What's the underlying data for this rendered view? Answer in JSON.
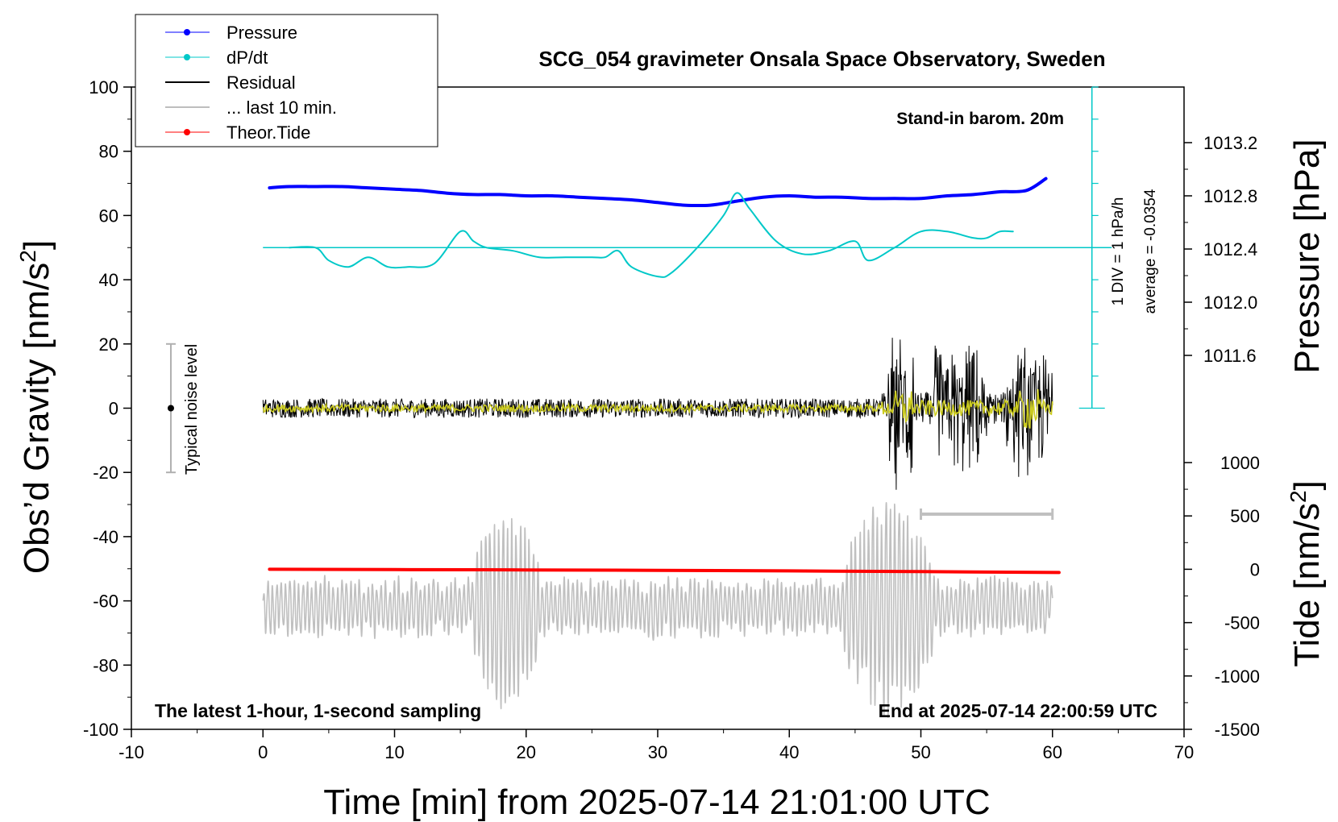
{
  "chart_data": {
    "type": "line",
    "title": "SCG_054 gravimeter Onsala Space Observatory, Sweden",
    "xlabel": "Time [min] from 2025-07-14 21:01:00 UTC",
    "ylabel_left_main": "Obs’d Gravity [nm/s",
    "ylabel_left_sup": "2",
    "ylabel_left_end": "]",
    "ylabel_right_top": "Pressure [hPa]",
    "ylabel_right_bottom_main": "Tide [nm/s",
    "ylabel_right_bottom_sup": "2",
    "ylabel_right_bottom_end": "]",
    "xlim": [
      -10,
      70
    ],
    "ylim": [
      -100,
      100
    ],
    "pressure_axis": {
      "ylim": [
        1011.6,
        1013.2
      ],
      "ticks": [
        "1011.6",
        "1012.0",
        "1012.4",
        "1012.8",
        "1013.2"
      ]
    },
    "tide_axis": {
      "ylim": [
        -1500,
        1000
      ],
      "ticks": [
        "-1500",
        "-1000",
        "-500",
        "0",
        "500",
        "1000"
      ]
    },
    "x_ticks": [
      "-10",
      "0",
      "10",
      "20",
      "30",
      "40",
      "50",
      "60",
      "70"
    ],
    "y_ticks": [
      "-100",
      "-80",
      "-60",
      "-40",
      "-20",
      "0",
      "20",
      "40",
      "60",
      "80",
      "100"
    ],
    "legend": {
      "placement": "top-left",
      "entries": [
        {
          "label": "Pressure",
          "color": "#0000ff",
          "marker": true
        },
        {
          "label": "dP/dt",
          "color": "#00c8c8",
          "marker": true
        },
        {
          "label": "Residual",
          "color": "#000000",
          "marker": false
        },
        {
          "label": "... last 10 min.",
          "color": "#bebebe",
          "marker": false
        },
        {
          "label": "Theor.Tide",
          "color": "#ff0000",
          "marker": true
        }
      ]
    },
    "annotations": {
      "stand_in": "Stand-in barom. 20m",
      "latest": "The latest 1-hour, 1-second sampling",
      "end_at": "End at 2025-07-14 22:00:59 UTC",
      "noise": "Typical noise level",
      "div_scale": "1 DIV = 1 hPa/h",
      "average": "average = -0.0354"
    },
    "noise_bar": {
      "x": -7,
      "center": 0,
      "half_range": 20
    },
    "last10_bar": {
      "x_start": 50,
      "x_end": 60
    },
    "series": [
      {
        "name": "Pressure",
        "color": "#0000ff",
        "axis": "pressure",
        "x": [
          0.5,
          2,
          4,
          6,
          8,
          10,
          12,
          14,
          16,
          18,
          20,
          22,
          24,
          26,
          28,
          30,
          32,
          34,
          36,
          38,
          40,
          42,
          44,
          46,
          48,
          50,
          52,
          54,
          56,
          58,
          59.5
        ],
        "y": [
          1012.86,
          1012.87,
          1012.87,
          1012.87,
          1012.86,
          1012.85,
          1012.84,
          1012.82,
          1012.81,
          1012.81,
          1012.8,
          1012.8,
          1012.79,
          1012.78,
          1012.77,
          1012.75,
          1012.73,
          1012.73,
          1012.76,
          1012.79,
          1012.8,
          1012.79,
          1012.79,
          1012.78,
          1012.78,
          1012.78,
          1012.8,
          1012.81,
          1012.83,
          1012.84,
          1012.93
        ]
      },
      {
        "name": "dP/dt",
        "color": "#00c8c8",
        "axis": "gravity",
        "x": [
          2,
          4,
          5,
          6.5,
          8,
          9.5,
          11,
          13,
          15,
          16,
          17,
          19,
          21,
          23,
          25,
          26,
          27,
          28,
          30,
          31,
          33,
          35,
          36,
          37,
          39,
          41,
          43,
          45,
          46,
          48,
          50,
          52,
          54,
          55,
          56,
          57
        ],
        "y": [
          50,
          50,
          46,
          44,
          47,
          44,
          44,
          45,
          55,
          52,
          50,
          49,
          47,
          47,
          47,
          47,
          49,
          44,
          41,
          42,
          50,
          60,
          67,
          62,
          52,
          48,
          49,
          52,
          46,
          50,
          55,
          55,
          53,
          53,
          55,
          55
        ]
      },
      {
        "name": "Theor.Tide",
        "color": "#ff0000",
        "axis": "tide",
        "x": [
          0.5,
          10,
          20,
          30,
          40,
          50,
          60.5
        ],
        "y": [
          0,
          -3,
          -6,
          -10,
          -15,
          -22,
          -30
        ]
      }
    ]
  }
}
